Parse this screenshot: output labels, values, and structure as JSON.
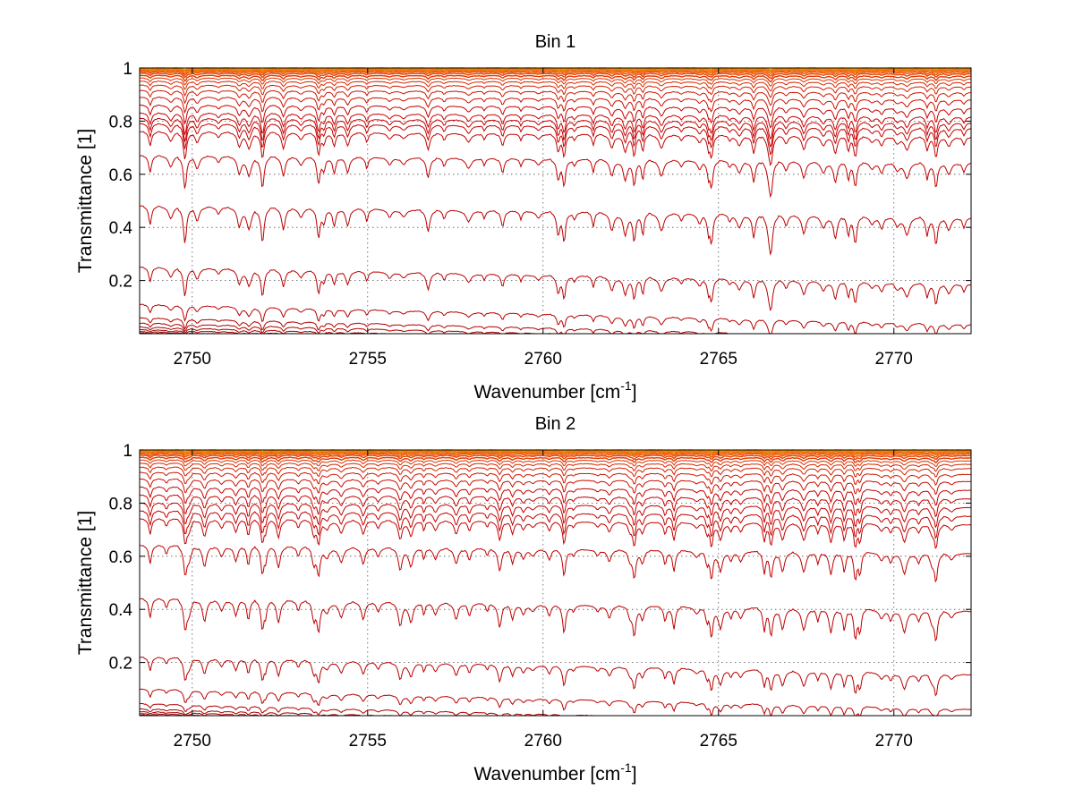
{
  "chart_data": [
    {
      "type": "line",
      "title": "Bin 1",
      "xlabel": "Wavenumber [cm",
      "xlabel_sup": "-1",
      "xlabel_end": "]",
      "ylabel": "Transmittance [1]",
      "xlim": [
        2748.5,
        2772.2
      ],
      "ylim": [
        0,
        1
      ],
      "xticks": [
        2750,
        2755,
        2760,
        2765,
        2770
      ],
      "yticks": [
        0.2,
        0.4,
        0.6,
        0.8,
        1
      ],
      "xtick_labels": [
        "2750",
        "2755",
        "2760",
        "2765",
        "2770"
      ],
      "ytick_labels": [
        "0.2",
        "0.4",
        "0.6",
        "0.8",
        "1"
      ],
      "grid": "dotted",
      "series_baselines": [
        0.0,
        0.003,
        0.008,
        0.015,
        0.025,
        0.04,
        0.06,
        0.11,
        0.25,
        0.48,
        0.67,
        0.76,
        0.79,
        0.81,
        0.83,
        0.86,
        0.89,
        0.915,
        0.935,
        0.95,
        0.962,
        0.972,
        0.98,
        0.986,
        0.991,
        0.995,
        0.998,
        1.0
      ],
      "series_colors": [
        "#8b0000",
        "#8b0000",
        "#9a0000",
        "#a00000",
        "#a80000",
        "#b00000",
        "#b00000",
        "#b80000",
        "#b80000",
        "#bb0000",
        "#c00000",
        "#c20000",
        "#c40000",
        "#c60000",
        "#c80000",
        "#c80000",
        "#cc1000",
        "#d01800",
        "#d42000",
        "#d82800",
        "#dc3000",
        "#e03800",
        "#e44000",
        "#e85000",
        "#ec6000",
        "#f07000",
        "#f48000",
        "#f89000"
      ]
    },
    {
      "type": "line",
      "title": "Bin 2",
      "xlabel": "Wavenumber [cm",
      "xlabel_sup": "-1",
      "xlabel_end": "]",
      "ylabel": "Transmittance [1]",
      "xlim": [
        2748.5,
        2772.2
      ],
      "ylim": [
        0,
        1
      ],
      "xticks": [
        2750,
        2755,
        2760,
        2765,
        2770
      ],
      "yticks": [
        0.2,
        0.4,
        0.6,
        0.8,
        1
      ],
      "xtick_labels": [
        "2750",
        "2755",
        "2760",
        "2765",
        "2770"
      ],
      "ytick_labels": [
        "0.2",
        "0.4",
        "0.6",
        "0.8",
        "1"
      ],
      "grid": "dotted",
      "series_baselines": [
        0.0,
        0.003,
        0.008,
        0.015,
        0.025,
        0.045,
        0.1,
        0.22,
        0.44,
        0.64,
        0.74,
        0.77,
        0.8,
        0.83,
        0.86,
        0.89,
        0.915,
        0.935,
        0.95,
        0.962,
        0.972,
        0.98,
        0.986,
        0.991,
        0.995,
        0.998,
        1.0
      ],
      "series_colors": [
        "#8b0000",
        "#8b0000",
        "#9a0000",
        "#a00000",
        "#a80000",
        "#b00000",
        "#b80000",
        "#b80000",
        "#bb0000",
        "#c00000",
        "#c20000",
        "#c40000",
        "#c60000",
        "#c80000",
        "#c80000",
        "#cc1000",
        "#d01800",
        "#d42000",
        "#d82800",
        "#dc3000",
        "#e03800",
        "#e44000",
        "#e85000",
        "#ec6000",
        "#f07000",
        "#f48000",
        "#f89000"
      ]
    }
  ]
}
